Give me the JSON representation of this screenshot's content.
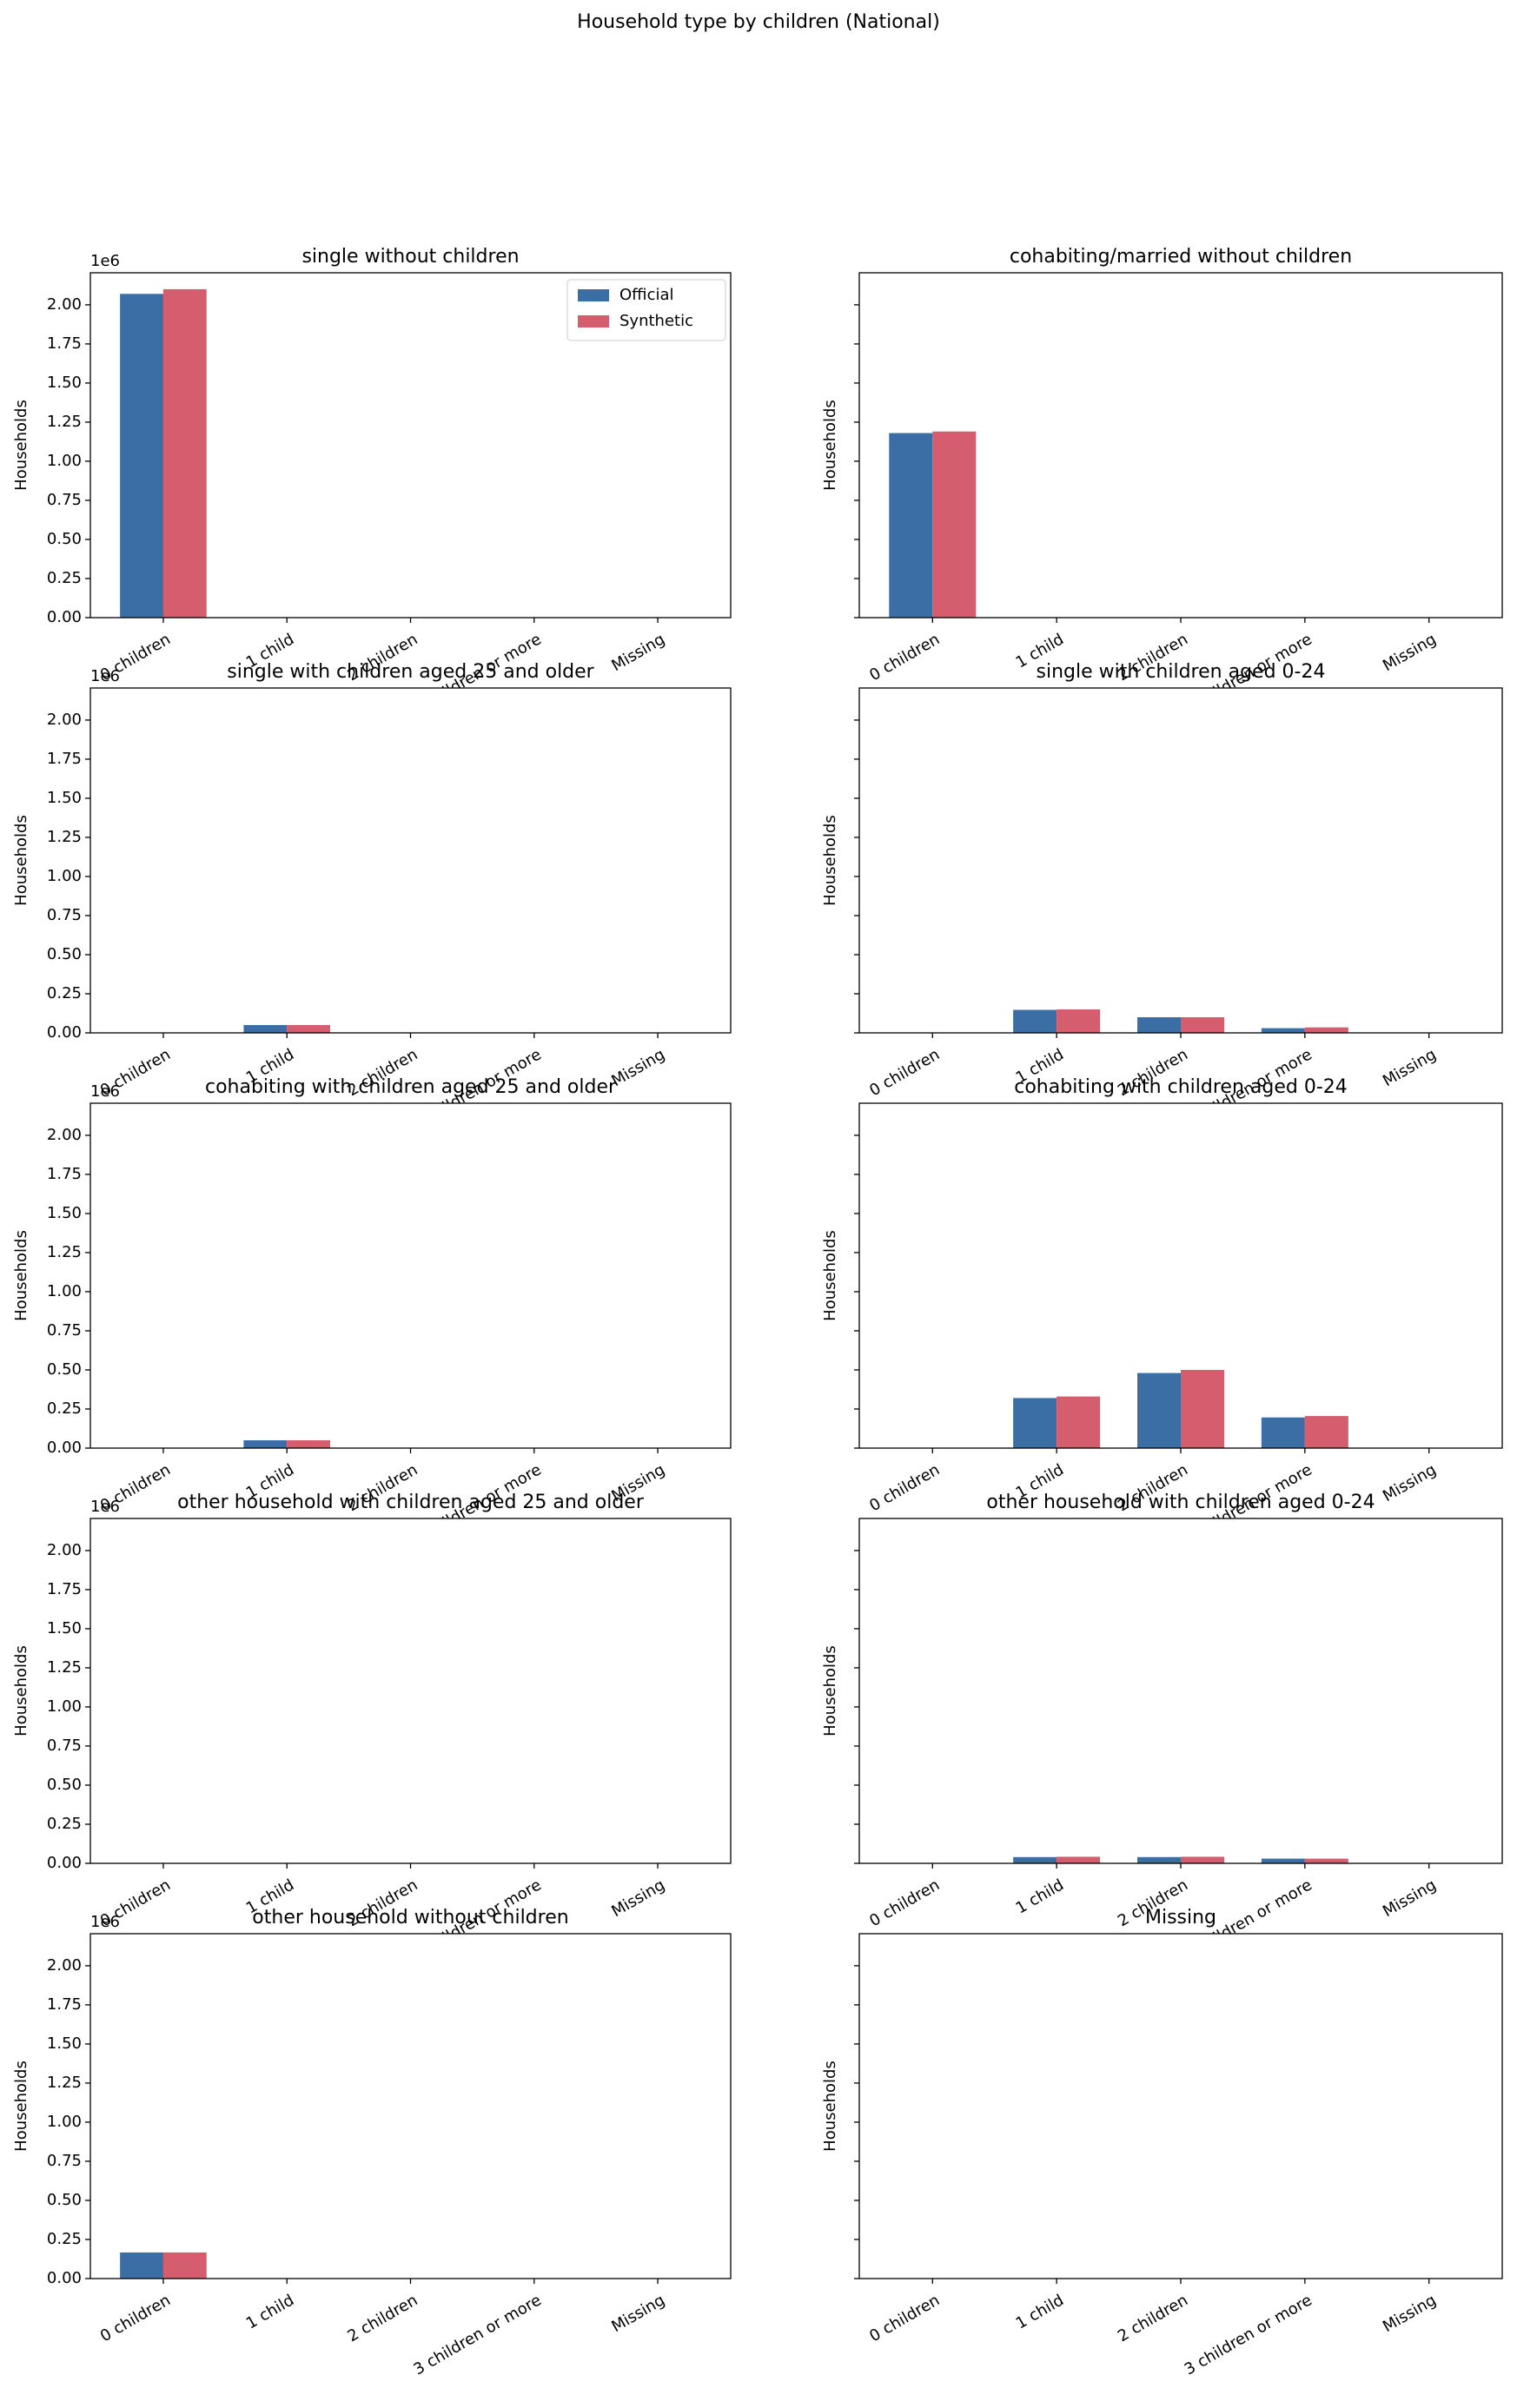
{
  "title": "Household type by children (National)",
  "chart_data": [
    {
      "type": "bar",
      "title": "single without children",
      "ylabel": "Households",
      "y_offset_label": "1e6",
      "categories": [
        "0 children",
        "1 child",
        "2 children",
        "3 children or more",
        "Missing"
      ],
      "series": [
        {
          "name": "Official",
          "color": "#3a6ea5",
          "values": [
            2070000,
            0,
            0,
            0,
            0
          ]
        },
        {
          "name": "Synthetic",
          "color": "#d45d6e",
          "values": [
            2100000,
            0,
            0,
            0,
            0
          ]
        }
      ],
      "ylim": [
        0,
        2205000
      ],
      "yticks": [
        {
          "value": 0,
          "label": "0.00"
        },
        {
          "value": 250000,
          "label": "0.25"
        },
        {
          "value": 500000,
          "label": "0.50"
        },
        {
          "value": 750000,
          "label": "0.75"
        },
        {
          "value": 1000000,
          "label": "1.00"
        },
        {
          "value": 1250000,
          "label": "1.25"
        },
        {
          "value": 1500000,
          "label": "1.50"
        },
        {
          "value": 1750000,
          "label": "1.75"
        },
        {
          "value": 2000000,
          "label": "2.00"
        }
      ],
      "legend": "upper right"
    },
    {
      "type": "bar",
      "title": "cohabiting/married without children",
      "ylabel": "Households",
      "categories": [
        "0 children",
        "1 child",
        "2 children",
        "3 children or more",
        "Missing"
      ],
      "series": [
        {
          "name": "Official",
          "color": "#3a6ea5",
          "values": [
            1180000,
            0,
            0,
            0,
            0
          ]
        },
        {
          "name": "Synthetic",
          "color": "#d45d6e",
          "values": [
            1190000,
            0,
            0,
            0,
            0
          ]
        }
      ],
      "ylim": [
        0,
        2205000
      ],
      "yticks": [
        0,
        250000,
        500000,
        750000,
        1000000,
        1250000,
        1500000,
        1750000,
        2000000
      ]
    },
    {
      "type": "bar",
      "title": "single with children aged 25 and older",
      "ylabel": "Households",
      "y_offset_label": "1e6",
      "categories": [
        "0 children",
        "1 child",
        "2 children",
        "3 children or more",
        "Missing"
      ],
      "series": [
        {
          "name": "Official",
          "color": "#3a6ea5",
          "values": [
            0,
            50000,
            0,
            0,
            0
          ]
        },
        {
          "name": "Synthetic",
          "color": "#d45d6e",
          "values": [
            0,
            50000,
            0,
            0,
            0
          ]
        }
      ],
      "ylim": [
        0,
        2205000
      ],
      "yticks": [
        {
          "value": 0,
          "label": "0.00"
        },
        {
          "value": 250000,
          "label": "0.25"
        },
        {
          "value": 500000,
          "label": "0.50"
        },
        {
          "value": 750000,
          "label": "0.75"
        },
        {
          "value": 1000000,
          "label": "1.00"
        },
        {
          "value": 1250000,
          "label": "1.25"
        },
        {
          "value": 1500000,
          "label": "1.50"
        },
        {
          "value": 1750000,
          "label": "1.75"
        },
        {
          "value": 2000000,
          "label": "2.00"
        }
      ]
    },
    {
      "type": "bar",
      "title": "single with children aged 0-24",
      "ylabel": "Households",
      "categories": [
        "0 children",
        "1 child",
        "2 children",
        "3 children or more",
        "Missing"
      ],
      "series": [
        {
          "name": "Official",
          "color": "#3a6ea5",
          "values": [
            0,
            147000,
            100000,
            30000,
            0
          ]
        },
        {
          "name": "Synthetic",
          "color": "#d45d6e",
          "values": [
            0,
            150000,
            100000,
            35000,
            0
          ]
        }
      ],
      "ylim": [
        0,
        2205000
      ],
      "yticks": [
        0,
        250000,
        500000,
        750000,
        1000000,
        1250000,
        1500000,
        1750000,
        2000000
      ]
    },
    {
      "type": "bar",
      "title": "cohabiting with children aged 25 and older",
      "ylabel": "Households",
      "y_offset_label": "1e6",
      "categories": [
        "0 children",
        "1 child",
        "2 children",
        "3 children or more",
        "Missing"
      ],
      "series": [
        {
          "name": "Official",
          "color": "#3a6ea5",
          "values": [
            0,
            50000,
            0,
            0,
            0
          ]
        },
        {
          "name": "Synthetic",
          "color": "#d45d6e",
          "values": [
            0,
            50000,
            0,
            0,
            0
          ]
        }
      ],
      "ylim": [
        0,
        2205000
      ],
      "yticks": [
        {
          "value": 0,
          "label": "0.00"
        },
        {
          "value": 250000,
          "label": "0.25"
        },
        {
          "value": 500000,
          "label": "0.50"
        },
        {
          "value": 750000,
          "label": "0.75"
        },
        {
          "value": 1000000,
          "label": "1.00"
        },
        {
          "value": 1250000,
          "label": "1.25"
        },
        {
          "value": 1500000,
          "label": "1.50"
        },
        {
          "value": 1750000,
          "label": "1.75"
        },
        {
          "value": 2000000,
          "label": "2.00"
        }
      ]
    },
    {
      "type": "bar",
      "title": "cohabiting with children aged 0-24",
      "ylabel": "Households",
      "categories": [
        "0 children",
        "1 child",
        "2 children",
        "3 children or more",
        "Missing"
      ],
      "series": [
        {
          "name": "Official",
          "color": "#3a6ea5",
          "values": [
            0,
            320000,
            480000,
            196000,
            0
          ]
        },
        {
          "name": "Synthetic",
          "color": "#d45d6e",
          "values": [
            0,
            330000,
            500000,
            205000,
            0
          ]
        }
      ],
      "ylim": [
        0,
        2205000
      ],
      "yticks": [
        0,
        250000,
        500000,
        750000,
        1000000,
        1250000,
        1500000,
        1750000,
        2000000
      ]
    },
    {
      "type": "bar",
      "title": "other household with children aged 25 and older",
      "ylabel": "Households",
      "y_offset_label": "1e6",
      "categories": [
        "0 children",
        "1 child",
        "2 children",
        "3 children or more",
        "Missing"
      ],
      "series": [
        {
          "name": "Official",
          "color": "#3a6ea5",
          "values": [
            0,
            0,
            0,
            0,
            0
          ]
        },
        {
          "name": "Synthetic",
          "color": "#d45d6e",
          "values": [
            0,
            0,
            0,
            0,
            0
          ]
        }
      ],
      "ylim": [
        0,
        2205000
      ],
      "yticks": [
        {
          "value": 0,
          "label": "0.00"
        },
        {
          "value": 250000,
          "label": "0.25"
        },
        {
          "value": 500000,
          "label": "0.50"
        },
        {
          "value": 750000,
          "label": "0.75"
        },
        {
          "value": 1000000,
          "label": "1.00"
        },
        {
          "value": 1250000,
          "label": "1.25"
        },
        {
          "value": 1500000,
          "label": "1.50"
        },
        {
          "value": 1750000,
          "label": "1.75"
        },
        {
          "value": 2000000,
          "label": "2.00"
        }
      ]
    },
    {
      "type": "bar",
      "title": "other household with children aged 0-24",
      "ylabel": "Households",
      "categories": [
        "0 children",
        "1 child",
        "2 children",
        "3 children or more",
        "Missing"
      ],
      "series": [
        {
          "name": "Official",
          "color": "#3a6ea5",
          "values": [
            0,
            40000,
            40000,
            30000,
            0
          ]
        },
        {
          "name": "Synthetic",
          "color": "#d45d6e",
          "values": [
            0,
            42000,
            42000,
            30000,
            0
          ]
        }
      ],
      "ylim": [
        0,
        2205000
      ],
      "yticks": [
        0,
        250000,
        500000,
        750000,
        1000000,
        1250000,
        1500000,
        1750000,
        2000000
      ]
    },
    {
      "type": "bar",
      "title": "other household without children",
      "ylabel": "Households",
      "y_offset_label": "1e6",
      "categories": [
        "0 children",
        "1 child",
        "2 children",
        "3 children or more",
        "Missing"
      ],
      "series": [
        {
          "name": "Official",
          "color": "#3a6ea5",
          "values": [
            167000,
            0,
            0,
            0,
            0
          ]
        },
        {
          "name": "Synthetic",
          "color": "#d45d6e",
          "values": [
            167000,
            0,
            0,
            0,
            0
          ]
        }
      ],
      "ylim": [
        0,
        2205000
      ],
      "yticks": [
        {
          "value": 0,
          "label": "0.00"
        },
        {
          "value": 250000,
          "label": "0.25"
        },
        {
          "value": 500000,
          "label": "0.50"
        },
        {
          "value": 750000,
          "label": "0.75"
        },
        {
          "value": 1000000,
          "label": "1.00"
        },
        {
          "value": 1250000,
          "label": "1.25"
        },
        {
          "value": 1500000,
          "label": "1.50"
        },
        {
          "value": 1750000,
          "label": "1.75"
        },
        {
          "value": 2000000,
          "label": "2.00"
        }
      ]
    },
    {
      "type": "bar",
      "title": "Missing",
      "ylabel": "Households",
      "categories": [
        "0 children",
        "1 child",
        "2 children",
        "3 children or more",
        "Missing"
      ],
      "series": [
        {
          "name": "Official",
          "color": "#3a6ea5",
          "values": [
            0,
            0,
            0,
            0,
            0
          ]
        },
        {
          "name": "Synthetic",
          "color": "#d45d6e",
          "values": [
            0,
            0,
            0,
            0,
            0
          ]
        }
      ],
      "ylim": [
        0,
        2205000
      ],
      "yticks": [
        0,
        250000,
        500000,
        750000,
        1000000,
        1250000,
        1500000,
        1750000,
        2000000
      ]
    }
  ]
}
